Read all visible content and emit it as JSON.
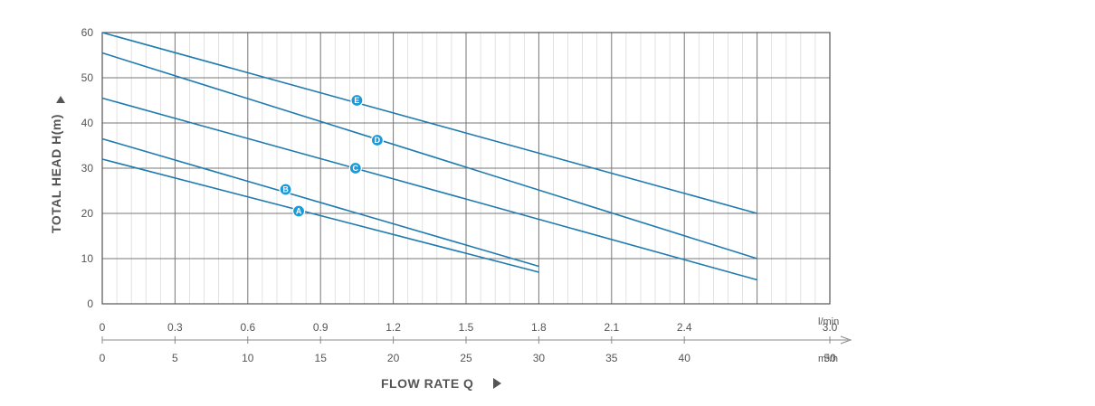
{
  "chart_data": {
    "type": "line",
    "ylabel": "TOTAL HEAD H(m)",
    "xlabel": "FLOW RATE Q",
    "ylim": [
      0,
      60
    ],
    "xlim_m3h": [
      0,
      50
    ],
    "y_ticks": [
      "0",
      "10",
      "20",
      "30",
      "40",
      "50",
      "60"
    ],
    "x_ticks_top": [
      "0",
      "0.3",
      "0.6",
      "0.9",
      "1.2",
      "1.5",
      "1.8",
      "2.1",
      "2.4",
      "3.0"
    ],
    "x_ticks_top_unit": "l/min",
    "x_ticks_bottom": [
      "0",
      "5",
      "10",
      "15",
      "20",
      "25",
      "30",
      "35",
      "40",
      "50"
    ],
    "x_ticks_bottom_unit": "m³/h",
    "grid": true,
    "series": [
      {
        "name": "A",
        "x": [
          0,
          30
        ],
        "y": [
          32,
          7
        ],
        "label_at": [
          13.5,
          20.5
        ]
      },
      {
        "name": "B",
        "x": [
          0,
          30
        ],
        "y": [
          36.5,
          8.3
        ],
        "label_at": [
          12.6,
          25.3
        ]
      },
      {
        "name": "C",
        "x": [
          0,
          45
        ],
        "y": [
          45.5,
          5.3
        ],
        "label_at": [
          17.4,
          30.0
        ]
      },
      {
        "name": "D",
        "x": [
          0,
          45
        ],
        "y": [
          55.5,
          10.0
        ],
        "label_at": [
          18.9,
          36.2
        ]
      },
      {
        "name": "E",
        "x": [
          0,
          45
        ],
        "y": [
          60,
          20
        ],
        "label_at": [
          17.5,
          45.0
        ]
      }
    ]
  }
}
